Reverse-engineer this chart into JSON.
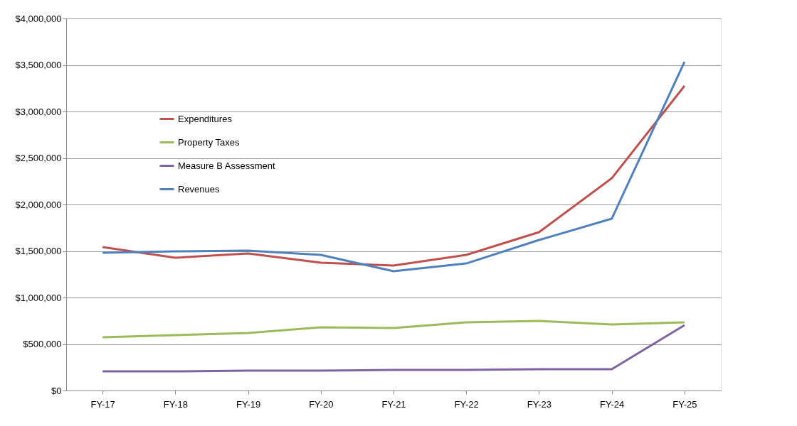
{
  "chart_data": {
    "type": "line",
    "categories": [
      "FY-17",
      "FY-18",
      "FY-19",
      "FY-20",
      "FY-21",
      "FY-22",
      "FY-23",
      "FY-24",
      "FY-25"
    ],
    "series": [
      {
        "name": "Expenditures",
        "color": "#c0504d",
        "values": [
          1542000,
          1427000,
          1473000,
          1374000,
          1344000,
          1458000,
          1702000,
          2282000,
          3275000
        ]
      },
      {
        "name": "Property Taxes",
        "color": "#9bbb59",
        "values": [
          573000,
          595000,
          618000,
          679000,
          672000,
          733000,
          748000,
          710000,
          733000
        ]
      },
      {
        "name": "Measure B Assessment",
        "color": "#8064a2",
        "values": [
          206000,
          206000,
          214000,
          214000,
          221000,
          221000,
          229000,
          229000,
          702000
        ]
      },
      {
        "name": "Revenues",
        "color": "#4f81bd",
        "values": [
          1481000,
          1496000,
          1504000,
          1458000,
          1282000,
          1366000,
          1618000,
          1847000,
          3534000
        ]
      }
    ],
    "ylim": [
      0,
      4000000
    ],
    "yticks": [
      {
        "value": 0,
        "label": "$0"
      },
      {
        "value": 500000,
        "label": "$500,000"
      },
      {
        "value": 1000000,
        "label": "$1,000,000"
      },
      {
        "value": 1500000,
        "label": "$1,500,000"
      },
      {
        "value": 2000000,
        "label": "$2,000,000"
      },
      {
        "value": 2500000,
        "label": "$2,500,000"
      },
      {
        "value": 3000000,
        "label": "$3,000,000"
      },
      {
        "value": 3500000,
        "label": "$3,500,000"
      },
      {
        "value": 4000000,
        "label": "$4,000,000"
      }
    ],
    "grid": "y",
    "legend": "top left",
    "marker": "none",
    "line_style": "solid"
  }
}
